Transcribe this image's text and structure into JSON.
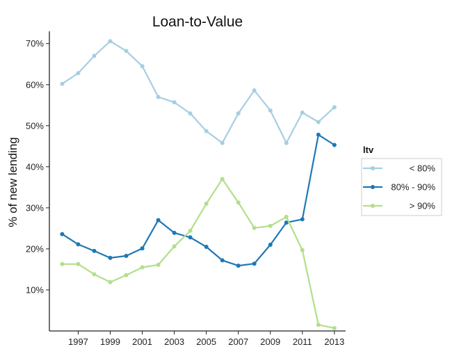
{
  "chart_data": {
    "type": "line",
    "title": "Loan-to-Value",
    "xlabel": "",
    "ylabel": "% of new lending",
    "x": [
      1996,
      1997,
      1998,
      1999,
      2000,
      2001,
      2002,
      2003,
      2004,
      2005,
      2006,
      2007,
      2008,
      2009,
      2010,
      2011,
      2012,
      2013
    ],
    "xticks": [
      "1997",
      "1999",
      "2001",
      "2003",
      "2005",
      "2007",
      "2009",
      "2011",
      "2013"
    ],
    "yticks": [
      "10%",
      "20%",
      "30%",
      "40%",
      "50%",
      "60%",
      "70%"
    ],
    "ylim": [
      0,
      73
    ],
    "xlim": [
      1995.2,
      2013.7
    ],
    "grid": false,
    "legend": {
      "title": "ltv",
      "placement": "right"
    },
    "series": [
      {
        "name": "< 80%",
        "color": "#a6cee3",
        "values": [
          60.2,
          62.8,
          67.0,
          70.6,
          68.2,
          64.5,
          57.0,
          55.7,
          53.0,
          48.7,
          45.8,
          53.0,
          58.6,
          53.7,
          45.8,
          53.2,
          50.9,
          54.5
        ]
      },
      {
        "name": "80% - 90%",
        "color": "#1f78b4",
        "values": [
          23.6,
          21.1,
          19.5,
          17.8,
          18.3,
          20.1,
          27.0,
          23.9,
          22.8,
          20.5,
          17.2,
          15.9,
          16.4,
          21.0,
          26.4,
          27.2,
          47.8,
          45.3
        ]
      },
      {
        "name": "> 90%",
        "color": "#b2df8a",
        "values": [
          16.3,
          16.3,
          13.8,
          11.9,
          13.6,
          15.5,
          16.1,
          20.6,
          24.4,
          31.0,
          37.0,
          31.3,
          25.1,
          25.6,
          27.8,
          19.7,
          1.5,
          0.7
        ]
      }
    ]
  }
}
